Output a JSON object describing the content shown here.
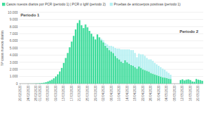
{
  "chart_data": {
    "type": "bar",
    "stacked": true,
    "grid": true,
    "y_label": "Nº casos nuevos diarios",
    "annotations": [
      "Periodo 1",
      "Periodo 2"
    ],
    "categories": [
      "20/02/2020",
      null,
      null,
      null,
      "24/02/2020",
      null,
      null,
      null,
      "28/02/2020",
      null,
      "01/03/2020",
      null,
      null,
      null,
      "05/03/2020",
      null,
      null,
      null,
      "09/03/2020",
      null,
      null,
      null,
      "13/03/2020",
      null,
      null,
      null,
      "17/03/2020",
      null,
      null,
      null,
      "21/03/2020",
      null,
      null,
      null,
      "25/03/2020",
      null,
      null,
      null,
      "29/03/2020",
      null,
      null,
      null,
      "02/04/2020",
      null,
      null,
      null,
      "06/04/2020",
      null,
      null,
      null,
      "10/04/2020",
      null,
      null,
      null,
      "14/04/2020",
      null,
      null,
      null,
      "18/04/2020",
      null,
      null,
      null,
      "22/04/2020",
      null,
      null,
      null,
      "26/04/2020",
      null,
      null,
      null,
      "30/04/2020",
      null,
      null,
      null,
      "04/05/2020",
      null,
      null,
      null,
      "08/05/2020",
      null,
      null,
      null,
      "12/05/2020",
      null,
      null,
      null,
      "16/05/2020",
      null,
      null,
      null,
      "20/05/2020",
      null,
      null
    ],
    "series": [
      {
        "name": "Casos nuevos diarios por PCR (periodo 1) | PCR o IgM (periodo 2)",
        "color": "#3fdc9c",
        "values": [
          0,
          0,
          2,
          3,
          5,
          10,
          15,
          20,
          30,
          40,
          60,
          90,
          130,
          200,
          300,
          420,
          550,
          750,
          1000,
          1300,
          1700,
          2200,
          2900,
          3600,
          4300,
          5100,
          5900,
          6700,
          7600,
          8500,
          8900,
          8200,
          7800,
          8300,
          7900,
          7400,
          7000,
          6600,
          6200,
          6900,
          6500,
          6100,
          5800,
          5300,
          5000,
          4700,
          4500,
          4300,
          3900,
          3600,
          3400,
          3100,
          2900,
          3300,
          3000,
          2800,
          2600,
          2500,
          2300,
          2100,
          2400,
          2200,
          2000,
          1900,
          1800,
          1700,
          1500,
          1400,
          1300,
          1200,
          1100,
          1000,
          900,
          850,
          800,
          700,
          650,
          null,
          null,
          null,
          null,
          500,
          600,
          450,
          550,
          600,
          500,
          300,
          250,
          650,
          550,
          500,
          400
        ]
      },
      {
        "name": "Pruebas de anticuerpos positivas (periodo 1)",
        "color": "#b6f0f2",
        "values": [
          0,
          0,
          0,
          0,
          0,
          0,
          0,
          0,
          0,
          0,
          0,
          0,
          0,
          0,
          0,
          0,
          0,
          0,
          0,
          0,
          0,
          0,
          0,
          0,
          0,
          0,
          0,
          0,
          0,
          0,
          0,
          0,
          0,
          0,
          0,
          0,
          0,
          0,
          0,
          0,
          0,
          200,
          300,
          400,
          500,
          600,
          800,
          900,
          1100,
          1300,
          1500,
          1700,
          1900,
          1500,
          1800,
          2000,
          2100,
          2200,
          2000,
          1600,
          1800,
          1900,
          2100,
          2000,
          1800,
          1700,
          1900,
          1800,
          1600,
          1500,
          1400,
          1300,
          1200,
          1100,
          900,
          800,
          600,
          null,
          null,
          null,
          null,
          null,
          null,
          null,
          null,
          null,
          null,
          null,
          null,
          null,
          null,
          null,
          null
        ]
      }
    ],
    "ylim": [
      0,
      10000
    ],
    "yticks": [
      0,
      {
        "value": 1000,
        "label": "1.000"
      },
      {
        "value": 2000,
        "label": "2.000"
      },
      {
        "value": 3000,
        "label": "3.000"
      },
      {
        "value": 4000,
        "label": "4.000"
      },
      {
        "value": 5000,
        "label": "5.000"
      },
      {
        "value": 6000,
        "label": "6.000"
      },
      {
        "value": 7000,
        "label": "7.000"
      },
      {
        "value": 8000,
        "label": "8.000"
      },
      {
        "value": 9000,
        "label": "9.000"
      },
      {
        "value": 10000,
        "label": "10.000"
      }
    ]
  }
}
